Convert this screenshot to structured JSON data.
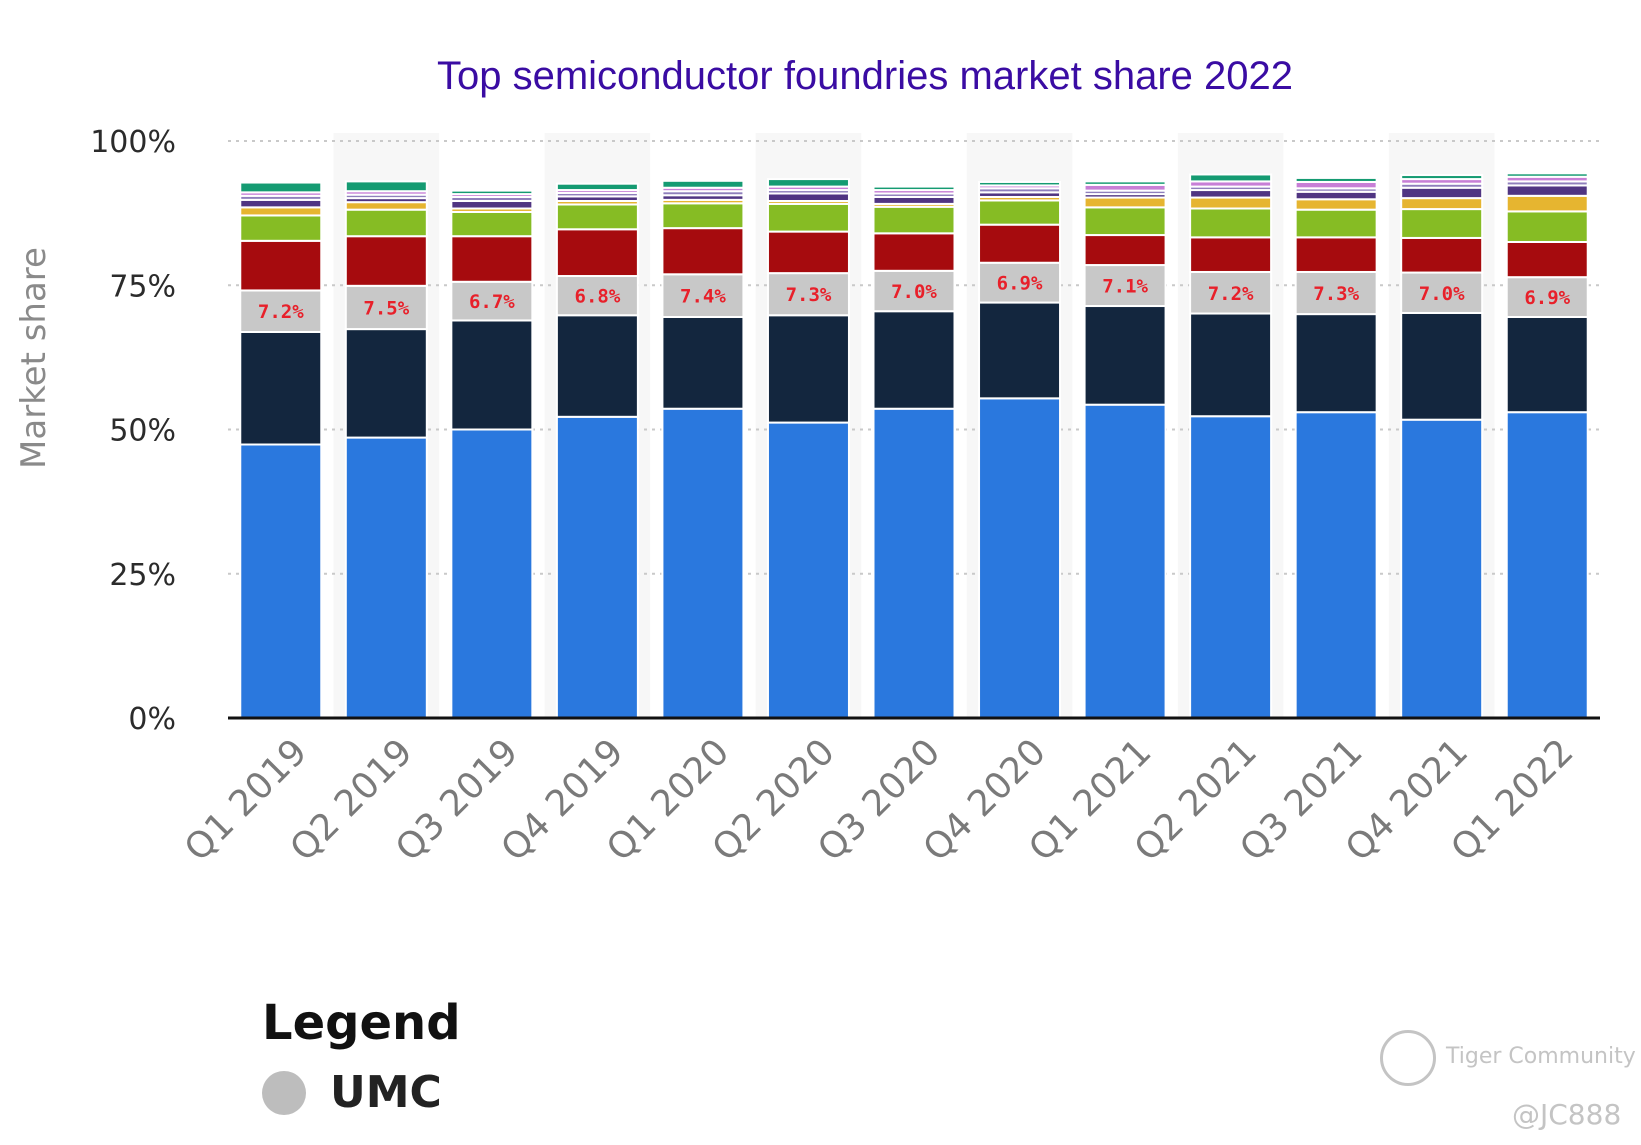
{
  "chart_data": {
    "type": "bar",
    "stacked": true,
    "title": "Top semiconductor foundries market share 2022",
    "ylabel": "Market share",
    "ylim": [
      0,
      100
    ],
    "yticks": [
      "0%",
      "25%",
      "50%",
      "75%",
      "100%"
    ],
    "grid": true,
    "categories": [
      "Q1 2019",
      "Q2 2019",
      "Q3 2019",
      "Q4 2019",
      "Q1 2020",
      "Q2 2020",
      "Q3 2020",
      "Q4 2020",
      "Q1 2021",
      "Q2 2021",
      "Q3 2021",
      "Q4 2021",
      "Q1 2022"
    ],
    "series": [
      {
        "color": "#2a78de",
        "values": [
          47.4,
          48.6,
          50.0,
          52.2,
          53.6,
          51.2,
          53.6,
          55.4,
          54.3,
          52.3,
          53.0,
          51.7,
          53.0
        ]
      },
      {
        "color": "#13263e",
        "values": [
          19.5,
          18.8,
          18.9,
          17.6,
          15.9,
          18.6,
          16.9,
          16.6,
          17.1,
          17.8,
          17.0,
          18.5,
          16.5
        ]
      },
      {
        "name": "UMC",
        "color": "#c8c8c8",
        "values": [
          7.2,
          7.5,
          6.7,
          6.8,
          7.4,
          7.3,
          7.0,
          6.9,
          7.1,
          7.2,
          7.3,
          7.0,
          6.9
        ]
      },
      {
        "color": "#a60b0e",
        "values": [
          8.6,
          8.6,
          7.9,
          8.1,
          8.0,
          7.2,
          6.5,
          6.6,
          5.2,
          6.0,
          6.0,
          6.0,
          6.1
        ]
      },
      {
        "color": "#86bc24",
        "values": [
          4.4,
          4.6,
          4.2,
          4.3,
          4.3,
          4.8,
          4.6,
          4.2,
          4.8,
          5.0,
          4.8,
          5.0,
          5.3
        ]
      },
      {
        "color": "#e6b530",
        "values": [
          1.4,
          1.3,
          0.6,
          0.6,
          0.6,
          0.5,
          0.5,
          0.6,
          1.7,
          1.9,
          1.8,
          1.9,
          2.7
        ]
      },
      {
        "color": "#503582",
        "values": [
          1.3,
          0.7,
          1.3,
          0.8,
          0.8,
          1.3,
          1.2,
          0.8,
          0.6,
          1.3,
          1.3,
          1.8,
          1.8
        ]
      },
      {
        "color": "#8f7fbc",
        "values": [
          0.7,
          0.6,
          0.7,
          0.6,
          0.7,
          0.6,
          0.6,
          0.7,
          0.6,
          0.6,
          0.6,
          0.7,
          0.7
        ]
      },
      {
        "color": "#c77fd6",
        "values": [
          0.6,
          0.6,
          0.5,
          0.5,
          0.6,
          0.6,
          0.6,
          0.5,
          1.0,
          0.9,
          1.1,
          0.8,
          0.8
        ]
      },
      {
        "color": "#159b72",
        "values": [
          1.7,
          1.7,
          0.6,
          1.1,
          1.2,
          1.3,
          0.6,
          0.6,
          0.6,
          1.2,
          0.7,
          0.7,
          0.6
        ]
      }
    ],
    "data_labels": {
      "series": "UMC",
      "values": [
        "7.2%",
        "7.5%",
        "6.7%",
        "6.8%",
        "7.4%",
        "7.3%",
        "7.0%",
        "6.9%",
        "7.1%",
        "7.2%",
        "7.3%",
        "7.0%",
        "6.9%"
      ]
    },
    "legend": {
      "title": "Legend",
      "placement": "bottom-left",
      "items": [
        {
          "label": "UMC",
          "color": "#bdbdbd"
        }
      ]
    }
  },
  "watermark": {
    "brand": "Tiger Community",
    "handle": "@JC888"
  }
}
